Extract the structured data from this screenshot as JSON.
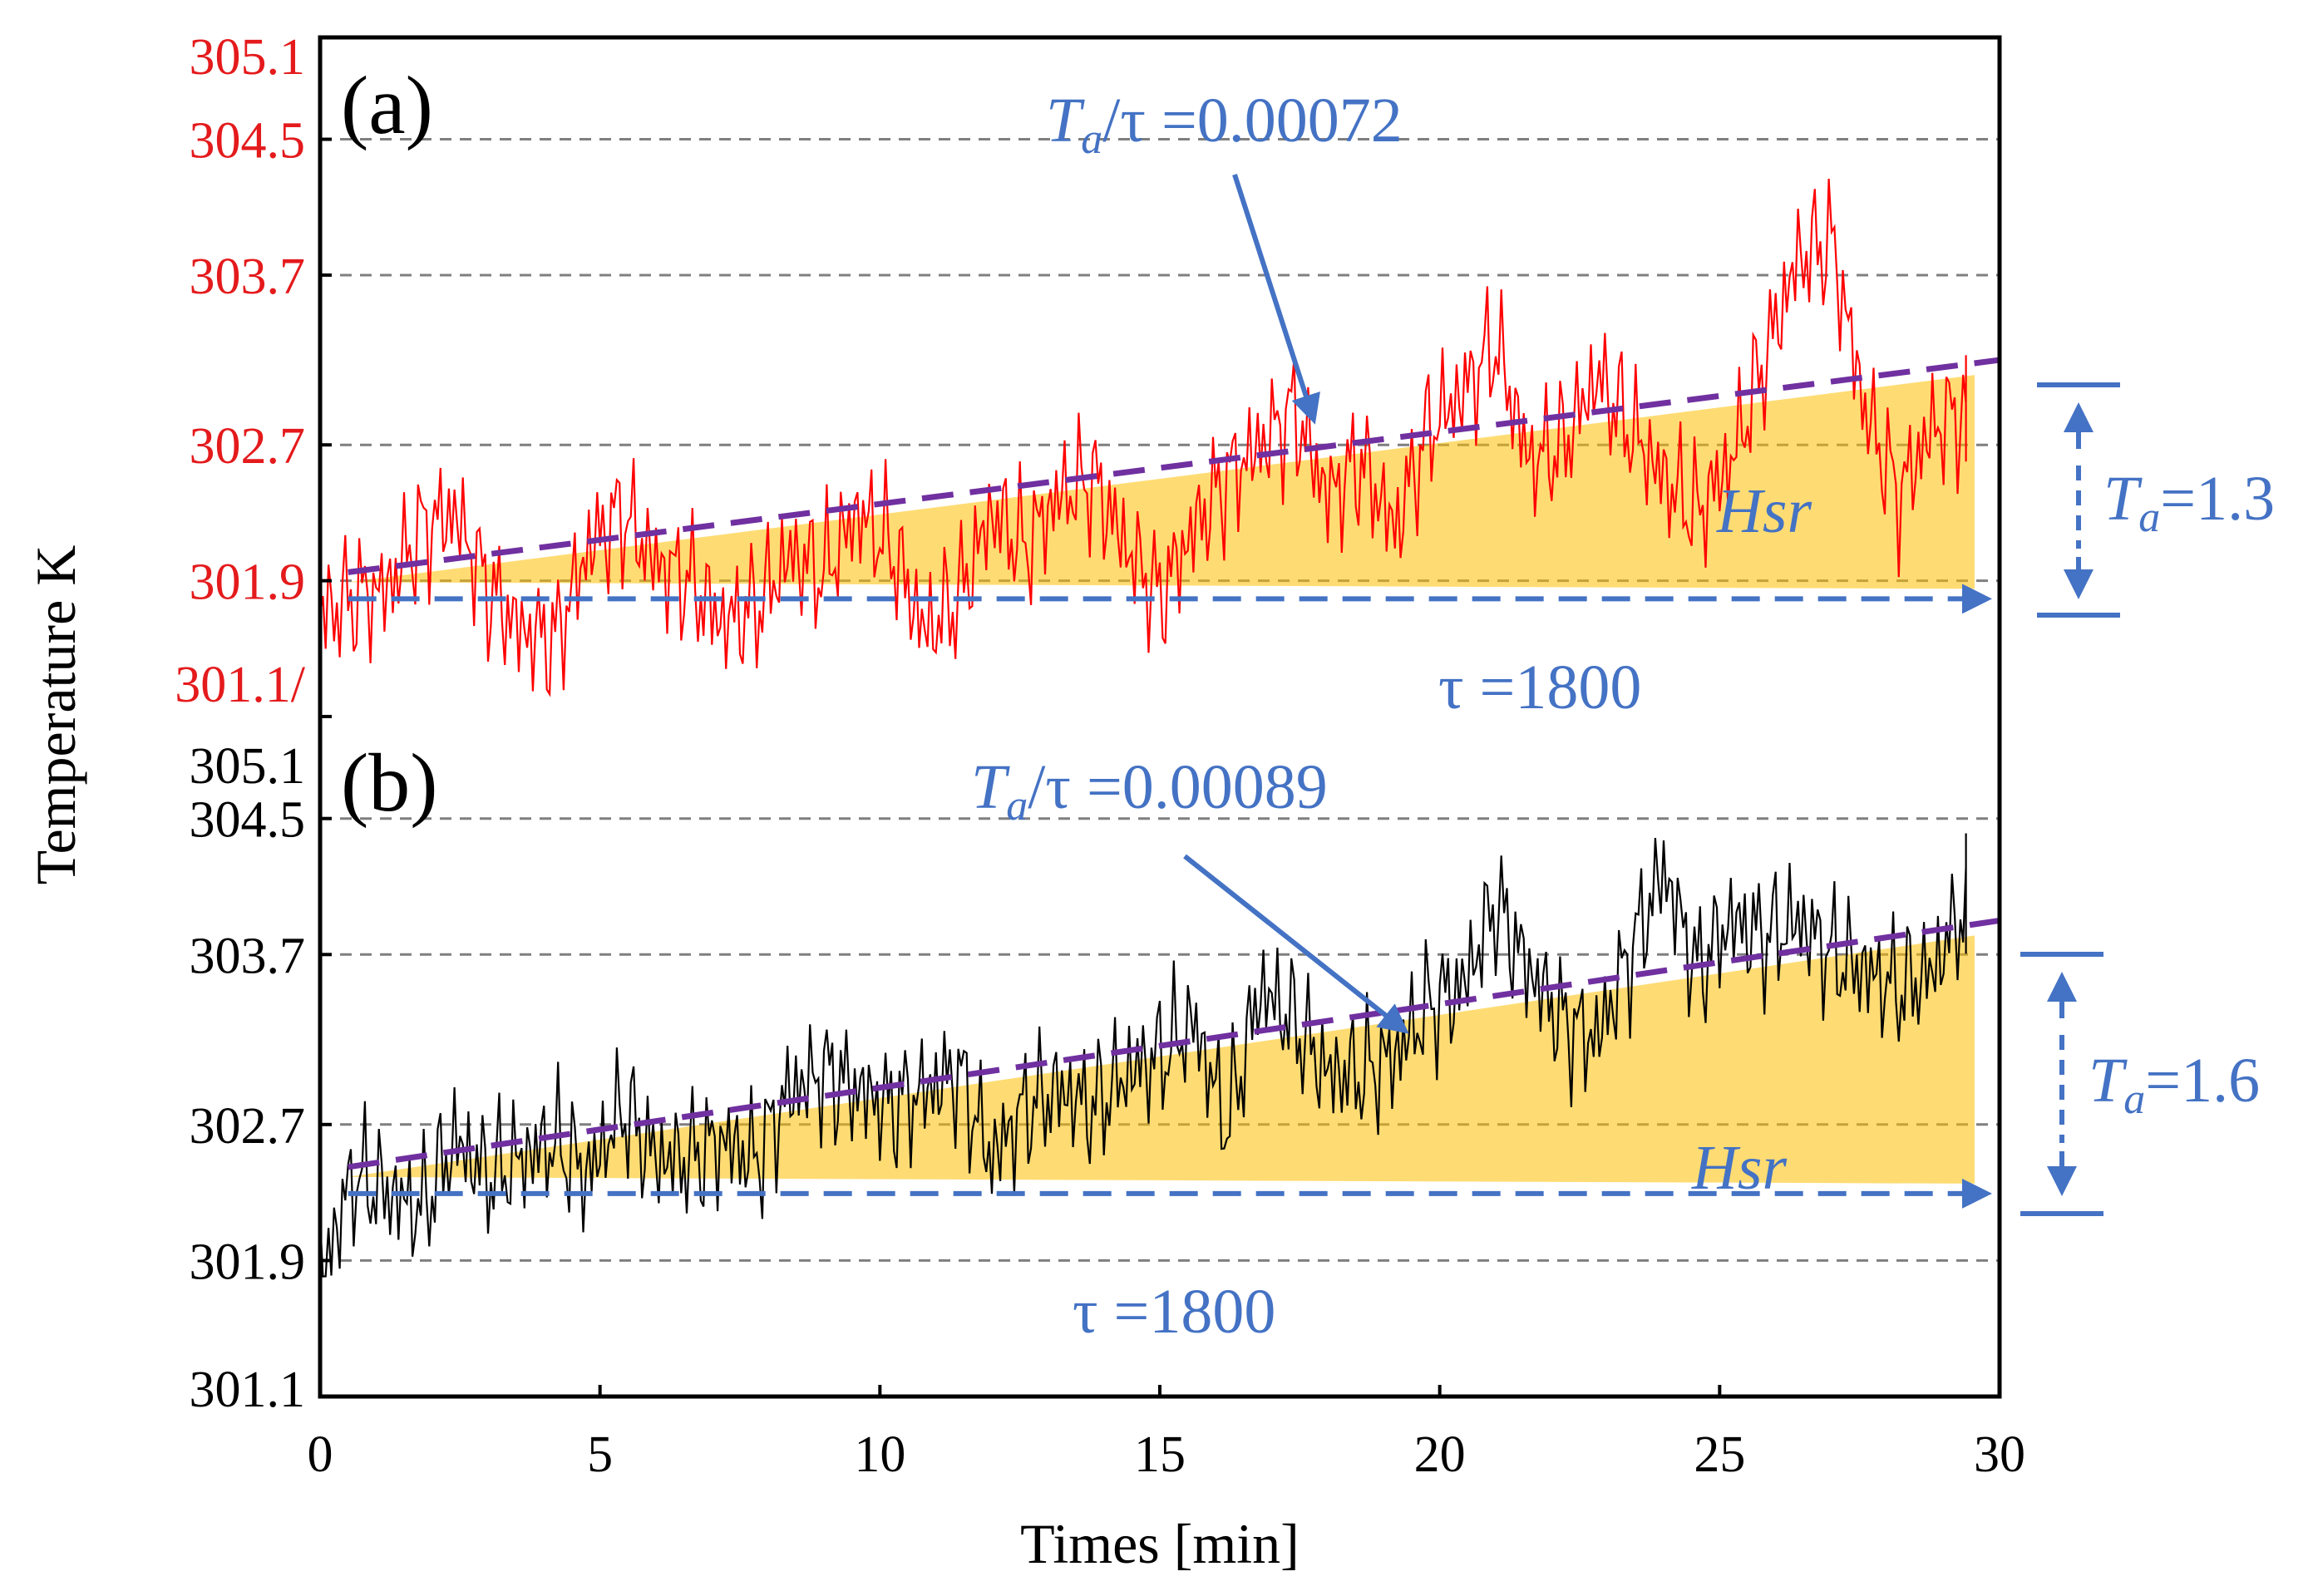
{
  "chart_data": [
    {
      "type": "line",
      "panel_label": "(a)",
      "color": "#ff0000",
      "y_ticks": [
        "305.1",
        "304.5",
        "303.7",
        "302.7",
        "301.9",
        "301.1/"
      ],
      "y_tick_values": [
        305.1,
        304.5,
        303.7,
        302.7,
        301.9,
        301.1
      ],
      "ylim": [
        301.1,
        305.1
      ],
      "xlim": [
        0,
        30
      ],
      "series": [
        {
          "values": [
            [
              0.0,
              301.7
            ],
            [
              0.6,
              301.8
            ],
            [
              1.2,
              301.85
            ],
            [
              1.8,
              302.2
            ],
            [
              2.4,
              302.3
            ],
            [
              3.0,
              301.85
            ],
            [
              3.6,
              301.6
            ],
            [
              4.2,
              301.55
            ],
            [
              4.8,
              302.1
            ],
            [
              5.4,
              302.3
            ],
            [
              6.0,
              302.0
            ],
            [
              6.6,
              301.9
            ],
            [
              7.2,
              301.65
            ],
            [
              7.8,
              301.75
            ],
            [
              8.4,
              302.05
            ],
            [
              9.0,
              301.95
            ],
            [
              9.6,
              302.3
            ],
            [
              10.2,
              302.1
            ],
            [
              10.8,
              301.6
            ],
            [
              11.4,
              301.8
            ],
            [
              12.0,
              302.3
            ],
            [
              12.6,
              302.1
            ],
            [
              13.2,
              302.4
            ],
            [
              13.8,
              302.5
            ],
            [
              14.4,
              302.1
            ],
            [
              15.0,
              301.8
            ],
            [
              15.6,
              302.2
            ],
            [
              16.2,
              302.5
            ],
            [
              16.8,
              302.7
            ],
            [
              17.4,
              302.9
            ],
            [
              18.0,
              302.4
            ],
            [
              18.6,
              302.6
            ],
            [
              19.2,
              302.2
            ],
            [
              19.8,
              302.8
            ],
            [
              20.4,
              303.0
            ],
            [
              21.0,
              303.3
            ],
            [
              21.6,
              302.6
            ],
            [
              22.2,
              302.7
            ],
            [
              22.8,
              303.1
            ],
            [
              23.4,
              302.8
            ],
            [
              24.0,
              302.5
            ],
            [
              24.6,
              302.3
            ],
            [
              25.2,
              302.6
            ],
            [
              25.8,
              303.2
            ],
            [
              26.4,
              303.8
            ],
            [
              27.0,
              303.9
            ],
            [
              27.6,
              302.9
            ],
            [
              28.2,
              302.4
            ],
            [
              28.8,
              302.8
            ],
            [
              29.4,
              302.9
            ]
          ]
        },
        {
          "type": "line",
          "values": [
            [
              0.5,
              301.95
            ],
            [
              30,
              303.2
            ]
          ],
          "color": "#7030a0"
        }
      ],
      "annotations": {
        "slope": {
          "var": "T",
          "sub": "a",
          "rest": "/τ =0.00072"
        },
        "amplitude": {
          "var": "T",
          "sub": "a",
          "rest": "=1.3"
        },
        "period": "τ =1800",
        "area_label": "Hsr"
      }
    },
    {
      "type": "line",
      "panel_label": "(b)",
      "color": "#000000",
      "y_ticks": [
        "305.1",
        "304.5",
        "303.7",
        "302.7",
        "301.9",
        "301.1"
      ],
      "y_tick_values": [
        305.1,
        304.5,
        303.7,
        302.7,
        301.9,
        301.1
      ],
      "ylim": [
        301.1,
        305.1
      ],
      "xlim": [
        0,
        30
      ],
      "xlabel": "Times [min]",
      "x_ticks": [
        "0",
        "5",
        "10",
        "15",
        "20",
        "25",
        "30"
      ],
      "x_tick_values": [
        0,
        5,
        10,
        15,
        20,
        25,
        30
      ],
      "series": [
        {
          "values": [
            [
              0.0,
              301.8
            ],
            [
              0.6,
              302.4
            ],
            [
              1.2,
              302.3
            ],
            [
              1.8,
              302.2
            ],
            [
              2.4,
              302.6
            ],
            [
              3.0,
              302.4
            ],
            [
              3.6,
              302.5
            ],
            [
              4.2,
              302.6
            ],
            [
              4.8,
              302.4
            ],
            [
              5.4,
              302.8
            ],
            [
              6.0,
              302.5
            ],
            [
              6.6,
              302.5
            ],
            [
              7.2,
              302.6
            ],
            [
              7.8,
              302.5
            ],
            [
              8.4,
              302.9
            ],
            [
              9.0,
              303.0
            ],
            [
              9.6,
              302.9
            ],
            [
              10.2,
              302.8
            ],
            [
              10.8,
              302.9
            ],
            [
              11.4,
              303.0
            ],
            [
              12.0,
              302.5
            ],
            [
              12.6,
              302.8
            ],
            [
              13.2,
              302.9
            ],
            [
              13.8,
              302.8
            ],
            [
              14.4,
              303.0
            ],
            [
              15.0,
              303.1
            ],
            [
              15.6,
              303.3
            ],
            [
              16.2,
              302.7
            ],
            [
              16.8,
              303.5
            ],
            [
              17.4,
              303.3
            ],
            [
              18.0,
              303.0
            ],
            [
              18.6,
              303.0
            ],
            [
              19.2,
              303.1
            ],
            [
              19.8,
              303.4
            ],
            [
              20.4,
              303.5
            ],
            [
              21.0,
              304.0
            ],
            [
              21.6,
              303.6
            ],
            [
              22.2,
              303.3
            ],
            [
              22.8,
              303.2
            ],
            [
              23.4,
              303.7
            ],
            [
              24.0,
              304.2
            ],
            [
              24.6,
              303.6
            ],
            [
              25.2,
              303.9
            ],
            [
              25.8,
              303.8
            ],
            [
              26.4,
              303.9
            ],
            [
              27.0,
              303.7
            ],
            [
              27.6,
              303.6
            ],
            [
              28.2,
              303.5
            ],
            [
              28.8,
              303.6
            ],
            [
              29.4,
              304.0
            ]
          ]
        },
        {
          "type": "line",
          "values": [
            [
              0.5,
              302.45
            ],
            [
              30,
              303.9
            ]
          ],
          "color": "#7030a0"
        }
      ],
      "annotations": {
        "slope": {
          "var": "T",
          "sub": "a",
          "rest": "/τ =0.00089"
        },
        "amplitude": {
          "var": "T",
          "sub": "a",
          "rest": "=1.6"
        },
        "period": "τ =1800",
        "area_label": "Hsr"
      }
    }
  ],
  "ylabel": "Temperature K",
  "colors": {
    "annotation": "#4472c4",
    "fill": "#ffc000",
    "grid": "#7f7f7f"
  }
}
